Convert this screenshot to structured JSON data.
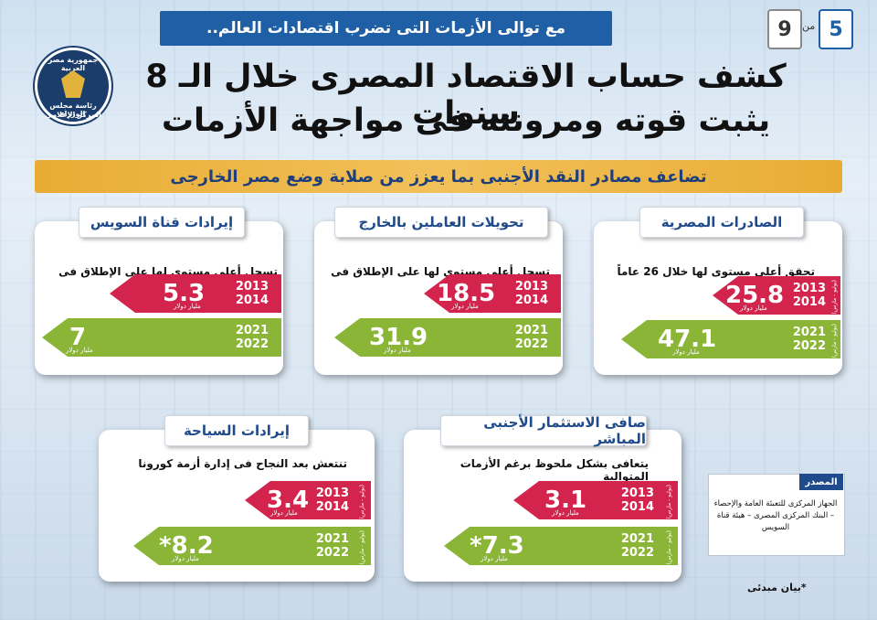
{
  "header": {
    "top_bar": "مع توالى الأزمات التى تضرب اقتصادات العالم..",
    "page_current": "5",
    "page_of": "من",
    "page_total": "9",
    "logo_line1": "جمهورية مصر العربية",
    "logo_line2": "رئاسة مجلس الوزراء",
    "logo_line3": "المركز الإعلامى",
    "title_line1": "كشف حساب الاقتصاد المصرى خلال الـ 8 سنوات",
    "title_line2": "يثبت قوته ومرونته فى مواجهة الأزمات",
    "subtitle": "تضاعف مصادر النقد الأجنبى بما يعزز من صلابة وضع مصر الخارجى"
  },
  "cards": {
    "exports": {
      "title": "الصادرات المصرية",
      "desc": "تحقق أعلى مستوى لها خلال 26 عاماً",
      "old_value": "25.8",
      "old_years": [
        "2013",
        "2014"
      ],
      "old_unit": "مليار دولار",
      "old_side": "(يوليو - مارس)",
      "new_value": "47.1",
      "new_years": [
        "2021",
        "2022"
      ],
      "new_unit": "مليار دولار",
      "new_side": "(يوليو - مارس)"
    },
    "remittances": {
      "title": "تحويلات العاملين بالخارج",
      "desc": "تسجل أعلى مستوى لها على الإطلاق فى 2021/2022",
      "old_value": "18.5",
      "old_years": [
        "2013",
        "2014"
      ],
      "old_unit": "مليار دولار",
      "new_value": "31.9",
      "new_years": [
        "2021",
        "2022"
      ],
      "new_unit": "مليار دولار"
    },
    "suez": {
      "title": "إيرادات قناة السويس",
      "desc": "تسجل أعلى مستوى لها على الإطلاق فى عام 2021/2022",
      "old_value": "5.3",
      "old_years": [
        "2013",
        "2014"
      ],
      "old_unit": "مليار دولار",
      "new_value": "7",
      "new_years": [
        "2021",
        "2022"
      ],
      "new_unit": "مليار دولار"
    },
    "fdi": {
      "title": "صافى الاستثمار الأجنبى المباشر",
      "desc": "يتعافى بشكل ملحوظ برغم الأزمات المتوالية",
      "old_value": "3.1",
      "old_years": [
        "2013",
        "2014"
      ],
      "old_unit": "مليار دولار",
      "old_side": "(يوليو - مارس)",
      "new_value": "*7.3",
      "new_years": [
        "2021",
        "2022"
      ],
      "new_unit": "مليار دولار",
      "new_side": "(يوليو - مارس)"
    },
    "tourism": {
      "title": "إيرادات السياحة",
      "desc": "تنتعش بعد النجاح فى إدارة أزمة كورونا",
      "old_value": "3.4",
      "old_years": [
        "2013",
        "2014"
      ],
      "old_unit": "مليار دولار",
      "old_side": "(يوليو - مارس)",
      "new_value": "*8.2",
      "new_years": [
        "2021",
        "2022"
      ],
      "new_unit": "مليار دولار",
      "new_side": "(يوليو - مارس)"
    }
  },
  "source": {
    "label": "المصدر",
    "text": "الجهاز المركزى للتعبئة العامة والإحصاء – البنك المركزى المصرى – هيئة قناة السويس"
  },
  "footnote": "*بيان مبدئى",
  "colors": {
    "red": "#d2244c",
    "green": "#8ab536",
    "blue": "#1f5fa6",
    "gold": "#e8ac34"
  }
}
